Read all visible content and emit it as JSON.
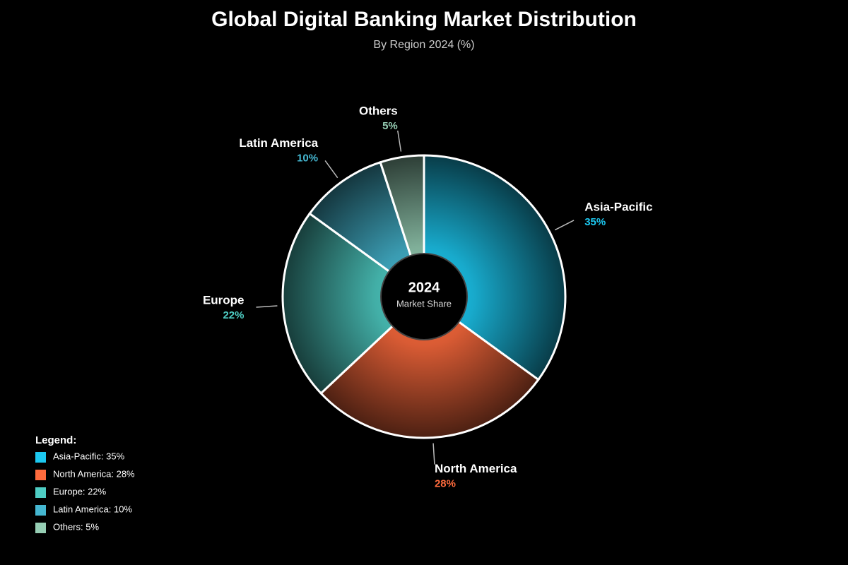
{
  "chart_data": {
    "type": "pie",
    "title": "Global Digital Banking Market Distribution",
    "subtitle": "By Region 2024 (%)",
    "center_title": "2024",
    "center_subtitle": "Market Share",
    "categories": [
      "Asia-Pacific",
      "North America",
      "Europe",
      "Latin America",
      "Others"
    ],
    "values": [
      35,
      28,
      22,
      10,
      5
    ],
    "value_labels": [
      "35%",
      "28%",
      "22%",
      "10%",
      "5%"
    ],
    "colors": [
      "#1cc8f0",
      "#ff6b3d",
      "#4ecdc4",
      "#45b7d1",
      "#96ceb4"
    ],
    "legend_title": "Legend:",
    "legend_labels": [
      "Asia-Pacific: 35%",
      "North America: 28%",
      "Europe: 22%",
      "Latin America: 10%",
      "Others: 5%"
    ]
  }
}
